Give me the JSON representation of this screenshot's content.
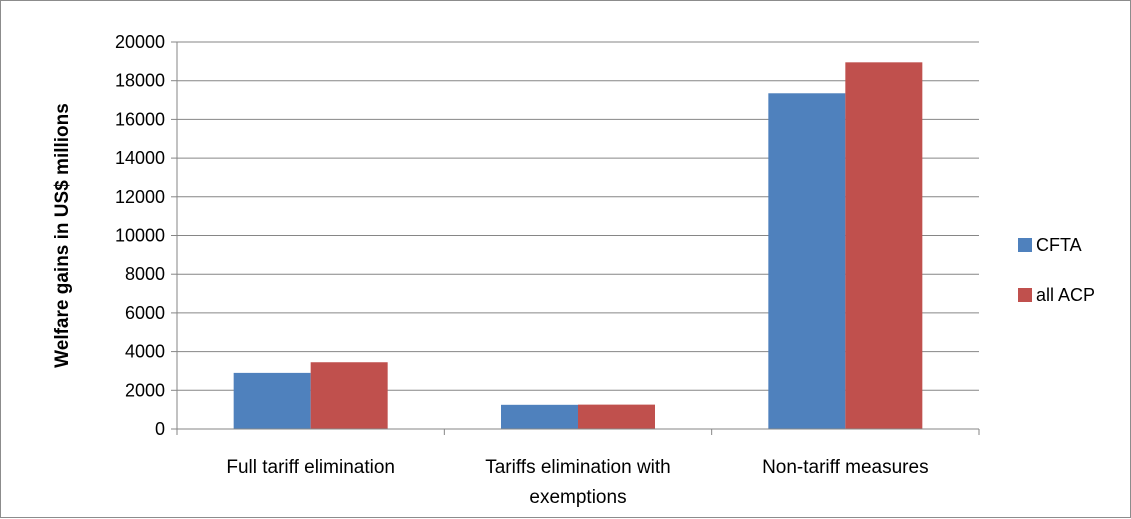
{
  "chart_data": {
    "type": "bar",
    "title": "",
    "xlabel": "",
    "ylabel": "Welfare gains in US$ millions",
    "ylim": [
      0,
      20000
    ],
    "yticks": [
      0,
      2000,
      4000,
      6000,
      8000,
      10000,
      12000,
      14000,
      16000,
      18000,
      20000
    ],
    "categories": [
      [
        "Full tariff elimination"
      ],
      [
        "Tariffs elimination with",
        "exemptions"
      ],
      [
        "Non-tariff measures"
      ]
    ],
    "series": [
      {
        "name": "CFTA",
        "color": "#4f81bd",
        "values": [
          2900,
          1250,
          17350
        ]
      },
      {
        "name": "all ACP",
        "color": "#c0504d",
        "values": [
          3450,
          1260,
          18950
        ]
      }
    ],
    "grid": true,
    "legend_position": "right"
  }
}
